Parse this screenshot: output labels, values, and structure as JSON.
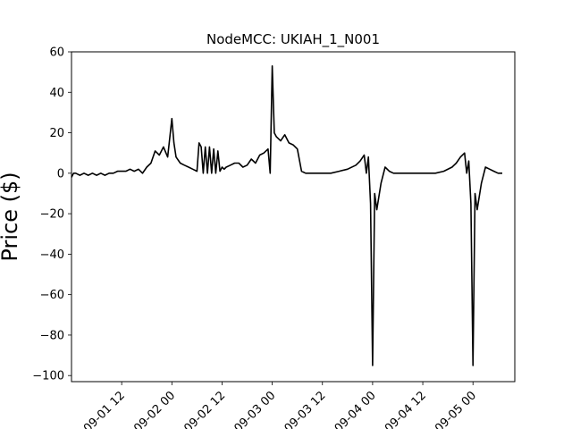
{
  "chart_data": {
    "type": "line",
    "title": "NodeMCC: UKIAH_1_N001",
    "xlabel": "",
    "ylabel": "Price ($)",
    "xlim": [
      "2023-09-01 00:00",
      "2023-09-05 10:00"
    ],
    "ylim": [
      -103,
      60
    ],
    "grid": false,
    "x_tick_labels": [
      "09-01 12",
      "09-02 00",
      "09-02 12",
      "09-03 00",
      "09-03 12",
      "09-04 00",
      "09-04 12",
      "09-05 00"
    ],
    "x_ticks": [
      "2023-09-01 12:00",
      "2023-09-02 00:00",
      "2023-09-02 12:00",
      "2023-09-03 00:00",
      "2023-09-03 12:00",
      "2023-09-04 00:00",
      "2023-09-04 12:00",
      "2023-09-05 00:00"
    ],
    "y_ticks": [
      60,
      40,
      20,
      0,
      -20,
      -40,
      -60,
      -80,
      -100
    ],
    "series": [
      {
        "name": "",
        "color": "#000000",
        "x": [
          "2023-09-01 00:00",
          "2023-09-01 00:30",
          "2023-09-01 01:00",
          "2023-09-01 02:00",
          "2023-09-01 03:00",
          "2023-09-01 04:00",
          "2023-09-01 05:00",
          "2023-09-01 06:00",
          "2023-09-01 07:00",
          "2023-09-01 08:00",
          "2023-09-01 09:00",
          "2023-09-01 10:00",
          "2023-09-01 11:00",
          "2023-09-01 12:00",
          "2023-09-01 13:00",
          "2023-09-01 14:00",
          "2023-09-01 15:00",
          "2023-09-01 16:00",
          "2023-09-01 17:00",
          "2023-09-01 18:00",
          "2023-09-01 19:00",
          "2023-09-01 20:00",
          "2023-09-01 21:00",
          "2023-09-01 22:00",
          "2023-09-01 23:00",
          "2023-09-02 00:00",
          "2023-09-02 00:30",
          "2023-09-02 01:00",
          "2023-09-02 02:00",
          "2023-09-02 03:00",
          "2023-09-02 04:00",
          "2023-09-02 05:00",
          "2023-09-02 06:00",
          "2023-09-02 06:30",
          "2023-09-02 07:00",
          "2023-09-02 07:30",
          "2023-09-02 08:00",
          "2023-09-02 08:30",
          "2023-09-02 09:00",
          "2023-09-02 09:30",
          "2023-09-02 10:00",
          "2023-09-02 10:30",
          "2023-09-02 11:00",
          "2023-09-02 11:30",
          "2023-09-02 12:00",
          "2023-09-02 12:30",
          "2023-09-02 13:00",
          "2023-09-02 14:00",
          "2023-09-02 15:00",
          "2023-09-02 16:00",
          "2023-09-02 17:00",
          "2023-09-02 18:00",
          "2023-09-02 19:00",
          "2023-09-02 20:00",
          "2023-09-02 21:00",
          "2023-09-02 22:00",
          "2023-09-02 23:00",
          "2023-09-02 23:30",
          "2023-09-03 00:00",
          "2023-09-03 00:30",
          "2023-09-03 01:00",
          "2023-09-03 02:00",
          "2023-09-03 03:00",
          "2023-09-03 04:00",
          "2023-09-03 05:00",
          "2023-09-03 06:00",
          "2023-09-03 07:00",
          "2023-09-03 08:00",
          "2023-09-03 09:00",
          "2023-09-03 10:00",
          "2023-09-03 12:00",
          "2023-09-03 14:00",
          "2023-09-03 16:00",
          "2023-09-03 18:00",
          "2023-09-03 20:00",
          "2023-09-03 21:00",
          "2023-09-03 22:00",
          "2023-09-03 22:30",
          "2023-09-03 23:00",
          "2023-09-03 23:30",
          "2023-09-04 00:00",
          "2023-09-04 00:30",
          "2023-09-04 01:00",
          "2023-09-04 02:00",
          "2023-09-04 03:00",
          "2023-09-04 04:00",
          "2023-09-04 05:00",
          "2023-09-04 07:00",
          "2023-09-04 09:00",
          "2023-09-04 11:00",
          "2023-09-04 13:00",
          "2023-09-04 15:00",
          "2023-09-04 17:00",
          "2023-09-04 19:00",
          "2023-09-04 20:00",
          "2023-09-04 21:00",
          "2023-09-04 22:00",
          "2023-09-04 22:30",
          "2023-09-04 23:00",
          "2023-09-04 23:30",
          "2023-09-05 00:00",
          "2023-09-05 00:30",
          "2023-09-05 01:00",
          "2023-09-05 02:00",
          "2023-09-05 03:00",
          "2023-09-05 04:00",
          "2023-09-05 05:00",
          "2023-09-05 06:00",
          "2023-09-05 07:00"
        ],
        "y": [
          -2,
          0,
          0,
          -1,
          0,
          -1,
          0,
          -1,
          0,
          -1,
          0,
          0,
          1,
          1,
          1,
          2,
          1,
          2,
          0,
          3,
          5,
          11,
          9,
          13,
          8,
          27,
          15,
          8,
          5,
          4,
          3,
          2,
          1,
          15,
          13,
          0,
          13,
          0,
          13,
          0,
          12,
          0,
          11,
          1,
          3,
          2,
          3,
          4,
          5,
          5,
          3,
          4,
          7,
          5,
          9,
          10,
          12,
          0,
          53,
          20,
          18,
          16,
          19,
          15,
          14,
          12,
          1,
          0,
          0,
          0,
          0,
          0,
          1,
          2,
          4,
          6,
          9,
          0,
          8,
          -15,
          -95,
          -10,
          -18,
          -5,
          3,
          1,
          0,
          0,
          0,
          0,
          0,
          0,
          1,
          3,
          5,
          8,
          10,
          0,
          6,
          -15,
          -95,
          -10,
          -18,
          -5,
          3,
          2,
          1,
          0,
          0
        ]
      }
    ]
  }
}
